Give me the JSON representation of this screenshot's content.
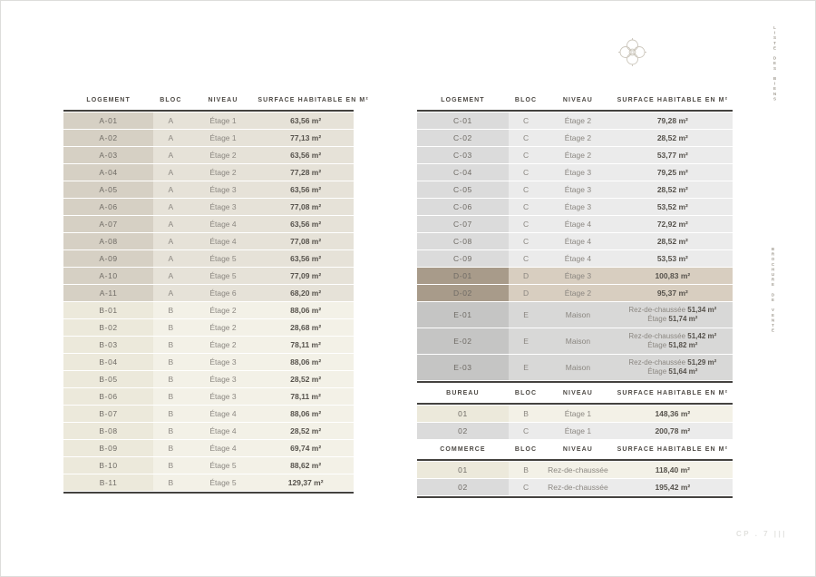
{
  "decor": {
    "vertical_top": "LISTE DES BIENS",
    "vertical_middle": "BROCHURE DE VENTE",
    "footer_mark": "CP . 7 |||",
    "logo_icon": "rosette-emblem"
  },
  "colors": {
    "rule": "#44423f",
    "bloc_a_cell": "#d6d0c4",
    "bloc_a_row": "#e6e2d8",
    "bloc_b_cell": "#ece9db",
    "bloc_b_row": "#f3f1e7",
    "bloc_c_cell": "#dbdbdb",
    "bloc_c_row": "#ebebeb",
    "bloc_d_cell": "#a89b8a",
    "bloc_d_row": "#d8cec0",
    "bloc_e_cell": "#c5c5c4",
    "bloc_e_row": "#d8d8d7"
  },
  "tables": [
    {
      "name": "logements-a-b",
      "headers": [
        "LOGEMENT",
        "BLOC",
        "NIVEAU",
        "SURFACE HABITABLE EN M²"
      ],
      "bottom_rule": true,
      "rows": [
        {
          "id": "A-01",
          "bloc": "A",
          "niveau": "Étage 1",
          "surface": "63,56 m²",
          "theme": "a"
        },
        {
          "id": "A-02",
          "bloc": "A",
          "niveau": "Étage 1",
          "surface": "77,13 m²",
          "theme": "a"
        },
        {
          "id": "A-03",
          "bloc": "A",
          "niveau": "Étage 2",
          "surface": "63,56 m²",
          "theme": "a"
        },
        {
          "id": "A-04",
          "bloc": "A",
          "niveau": "Étage 2",
          "surface": "77,28 m²",
          "theme": "a"
        },
        {
          "id": "A-05",
          "bloc": "A",
          "niveau": "Étage 3",
          "surface": "63,56 m²",
          "theme": "a"
        },
        {
          "id": "A-06",
          "bloc": "A",
          "niveau": "Étage 3",
          "surface": "77,08 m²",
          "theme": "a"
        },
        {
          "id": "A-07",
          "bloc": "A",
          "niveau": "Étage 4",
          "surface": "63,56 m²",
          "theme": "a"
        },
        {
          "id": "A-08",
          "bloc": "A",
          "niveau": "Étage 4",
          "surface": "77,08 m²",
          "theme": "a"
        },
        {
          "id": "A-09",
          "bloc": "A",
          "niveau": "Étage 5",
          "surface": "63,56 m²",
          "theme": "a"
        },
        {
          "id": "A-10",
          "bloc": "A",
          "niveau": "Étage 5",
          "surface": "77,09 m²",
          "theme": "a"
        },
        {
          "id": "A-11",
          "bloc": "A",
          "niveau": "Étage 6",
          "surface": "68,20 m²",
          "theme": "a"
        },
        {
          "id": "B-01",
          "bloc": "B",
          "niveau": "Étage 2",
          "surface": "88,06 m²",
          "theme": "b"
        },
        {
          "id": "B-02",
          "bloc": "B",
          "niveau": "Étage 2",
          "surface": "28,68 m²",
          "theme": "b"
        },
        {
          "id": "B-03",
          "bloc": "B",
          "niveau": "Étage 2",
          "surface": "78,11 m²",
          "theme": "b"
        },
        {
          "id": "B-04",
          "bloc": "B",
          "niveau": "Étage 3",
          "surface": "88,06 m²",
          "theme": "b"
        },
        {
          "id": "B-05",
          "bloc": "B",
          "niveau": "Étage 3",
          "surface": "28,52 m²",
          "theme": "b"
        },
        {
          "id": "B-06",
          "bloc": "B",
          "niveau": "Étage 3",
          "surface": "78,11 m²",
          "theme": "b"
        },
        {
          "id": "B-07",
          "bloc": "B",
          "niveau": "Étage 4",
          "surface": "88,06 m²",
          "theme": "b"
        },
        {
          "id": "B-08",
          "bloc": "B",
          "niveau": "Étage 4",
          "surface": "28,52 m²",
          "theme": "b"
        },
        {
          "id": "B-09",
          "bloc": "B",
          "niveau": "Étage 4",
          "surface": "69,74 m²",
          "theme": "b"
        },
        {
          "id": "B-10",
          "bloc": "B",
          "niveau": "Étage 5",
          "surface": "88,62 m²",
          "theme": "b"
        },
        {
          "id": "B-11",
          "bloc": "B",
          "niveau": "Étage 5",
          "surface": "129,37 m²",
          "theme": "b"
        }
      ]
    },
    {
      "name": "logements-c-d-e",
      "headers": [
        "LOGEMENT",
        "BLOC",
        "NIVEAU",
        "SURFACE HABITABLE EN M²"
      ],
      "bottom_rule": true,
      "rows": [
        {
          "id": "C-01",
          "bloc": "C",
          "niveau": "Étage 2",
          "surface": "79,28 m²",
          "theme": "c"
        },
        {
          "id": "C-02",
          "bloc": "C",
          "niveau": "Étage 2",
          "surface": "28,52 m²",
          "theme": "c"
        },
        {
          "id": "C-03",
          "bloc": "C",
          "niveau": "Étage 2",
          "surface": "53,77 m²",
          "theme": "c"
        },
        {
          "id": "C-04",
          "bloc": "C",
          "niveau": "Étage 3",
          "surface": "79,25 m²",
          "theme": "c"
        },
        {
          "id": "C-05",
          "bloc": "C",
          "niveau": "Étage 3",
          "surface": "28,52 m²",
          "theme": "c"
        },
        {
          "id": "C-06",
          "bloc": "C",
          "niveau": "Étage 3",
          "surface": "53,52 m²",
          "theme": "c"
        },
        {
          "id": "C-07",
          "bloc": "C",
          "niveau": "Étage 4",
          "surface": "72,92 m²",
          "theme": "c"
        },
        {
          "id": "C-08",
          "bloc": "C",
          "niveau": "Étage 4",
          "surface": "28,52 m²",
          "theme": "c"
        },
        {
          "id": "C-09",
          "bloc": "C",
          "niveau": "Étage 4",
          "surface": "53,53 m²",
          "theme": "c"
        },
        {
          "id": "D-01",
          "bloc": "D",
          "niveau": "Étage 3",
          "surface": "100,83 m²",
          "theme": "d"
        },
        {
          "id": "D-02",
          "bloc": "D",
          "niveau": "Étage 2",
          "surface": "95,37 m²",
          "theme": "d"
        },
        {
          "id": "E-01",
          "bloc": "E",
          "niveau": "Maison",
          "theme": "e",
          "surface_lines": [
            [
              "Rez-de-chaussée",
              "51,34 m²"
            ],
            [
              "Étage",
              "51,74 m²"
            ]
          ]
        },
        {
          "id": "E-02",
          "bloc": "E",
          "niveau": "Maison",
          "theme": "e",
          "surface_lines": [
            [
              "Rez-de-chaussée",
              "51,42 m²"
            ],
            [
              "Étage",
              "51,82 m²"
            ]
          ]
        },
        {
          "id": "E-03",
          "bloc": "E",
          "niveau": "Maison",
          "theme": "e",
          "surface_lines": [
            [
              "Rez-de-chaussée",
              "51,29 m²"
            ],
            [
              "Étage",
              "51,64 m²"
            ]
          ]
        }
      ]
    },
    {
      "name": "bureaux",
      "headers": [
        "BUREAU",
        "BLOC",
        "NIVEAU",
        "SURFACE HABITABLE EN M²"
      ],
      "bottom_rule": false,
      "rows": [
        {
          "id": "01",
          "bloc": "B",
          "niveau": "Étage 1",
          "surface": "148,36 m²",
          "theme": "b"
        },
        {
          "id": "02",
          "bloc": "C",
          "niveau": "Étage 1",
          "surface": "200,78 m²",
          "theme": "c"
        }
      ]
    },
    {
      "name": "commerces",
      "headers": [
        "COMMERCE",
        "BLOC",
        "NIVEAU",
        "SURFACE HABITABLE EN M²"
      ],
      "bottom_rule": true,
      "rows": [
        {
          "id": "01",
          "bloc": "B",
          "niveau": "Rez-de-chaussée",
          "surface": "118,40 m²",
          "theme": "b"
        },
        {
          "id": "02",
          "bloc": "C",
          "niveau": "Rez-de-chaussée",
          "surface": "195,42 m²",
          "theme": "c"
        }
      ]
    }
  ]
}
